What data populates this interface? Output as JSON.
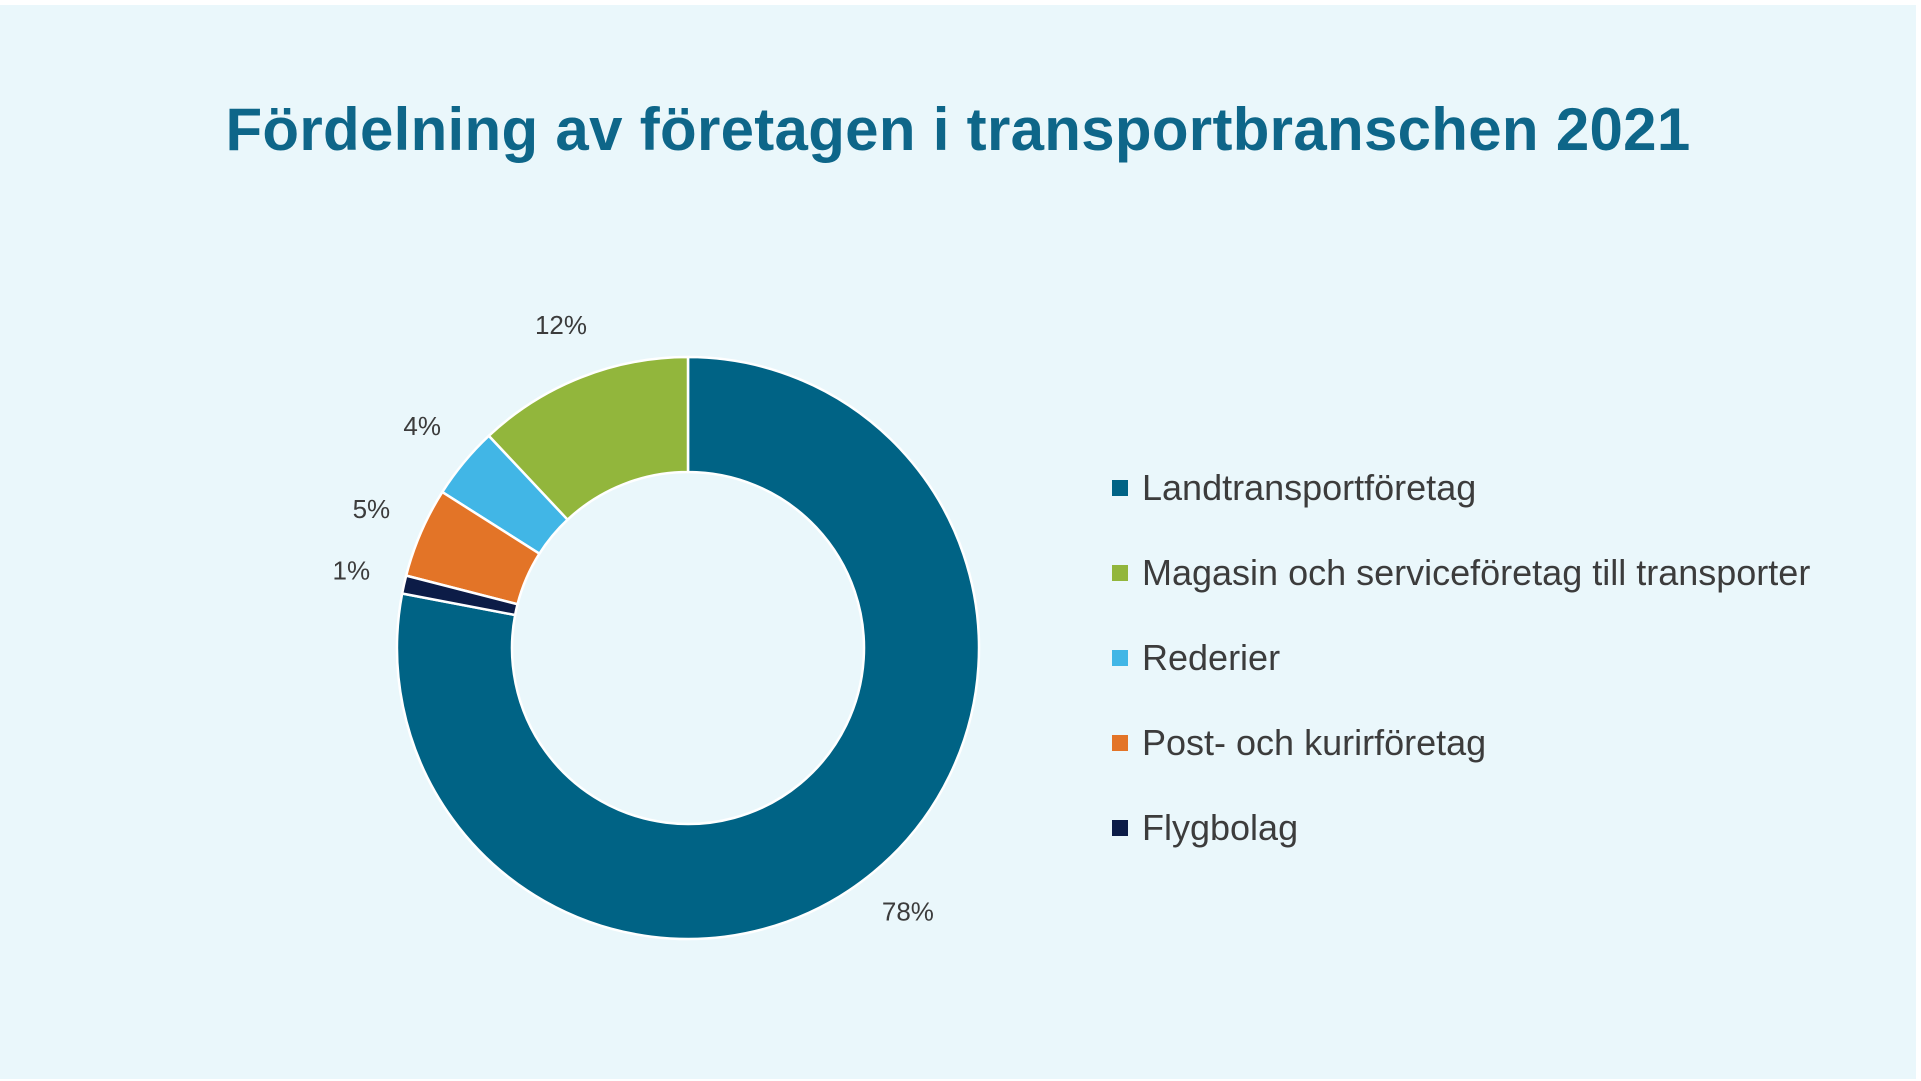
{
  "chart_data": {
    "type": "pie",
    "variant": "donut",
    "title": "Fördelning av företagen i transportbranschen 2021",
    "categories": [
      "Landtransportföretag",
      "Magasin och serviceföretag till transporter",
      "Rederier",
      "Post- och kurirföretag",
      "Flygbolag"
    ],
    "values": [
      78,
      12,
      4,
      5,
      1
    ],
    "value_labels": [
      "78%",
      "12%",
      "4%",
      "5%",
      "1%"
    ],
    "unit": "%",
    "colors": [
      "#006385",
      "#92b63c",
      "#41b6e6",
      "#e37427",
      "#0c1c47"
    ],
    "legend": "right"
  }
}
